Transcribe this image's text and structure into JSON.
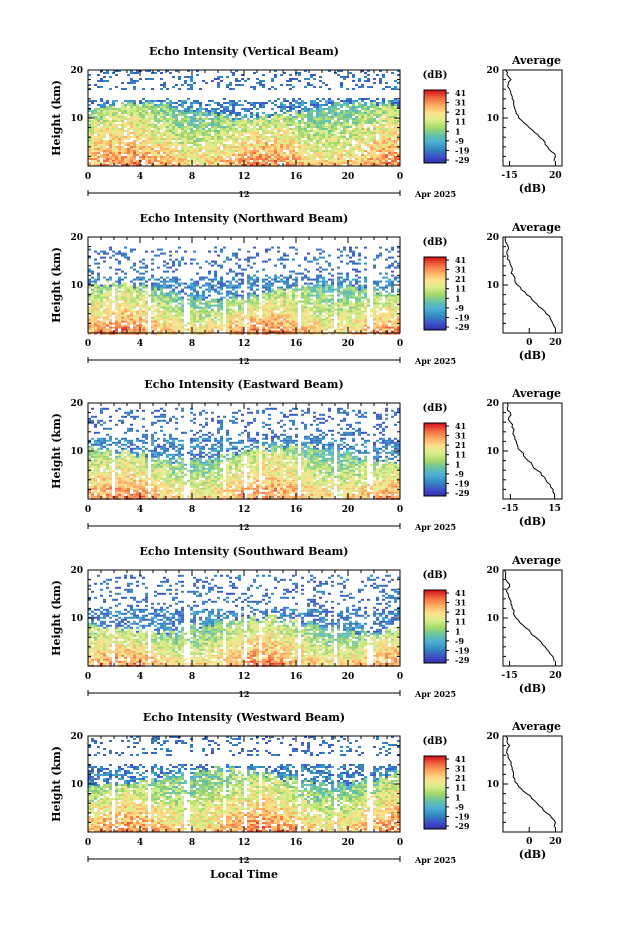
{
  "xaxis": {
    "ticks": [
      "0",
      "4",
      "8",
      "12",
      "16",
      "20",
      "0"
    ],
    "date_marker": "12",
    "date_label": "Apr 2025",
    "xlabel": "Local Time"
  },
  "colorbar": {
    "unit": "(dB)",
    "ticks": [
      "41",
      "31",
      "21",
      "11",
      "1",
      "-9",
      "-19",
      "-29"
    ],
    "colors": [
      "#d7191c",
      "#f46d43",
      "#fdae61",
      "#fee08b",
      "#d9ef8b",
      "#a6d96a",
      "#66c2a5",
      "#3288bd",
      "#3f4fcc",
      "#2c2c9e"
    ]
  },
  "panels": [
    {
      "title": "Echo Intensity (Vertical Beam)",
      "ylabel": "Height (km)",
      "yticks": [
        "20",
        "10"
      ],
      "ylim": [
        0,
        20
      ],
      "avg": {
        "title": "Average",
        "xlabel": "(dB)",
        "xticks": [
          "-15",
          "20"
        ],
        "xlim": [
          -20,
          25
        ],
        "profile": {
          "height": [
            1,
            2,
            3,
            4,
            5,
            6,
            7,
            8,
            9,
            10,
            11,
            12,
            13,
            14,
            15,
            16,
            17,
            18,
            19,
            20
          ],
          "db": [
            19,
            20,
            17,
            14,
            12,
            8,
            4,
            0,
            -4,
            -8,
            -10,
            -11,
            -12,
            -13,
            -14,
            -15,
            -16,
            -14,
            -17,
            -18
          ]
        }
      },
      "echo": {
        "top_km": 20,
        "dense_top_km": 11,
        "mid_top_km": 14,
        "gap": [
          14.5,
          16
        ]
      }
    },
    {
      "title": "Echo Intensity (Northward Beam)",
      "ylabel": "Height (km)",
      "yticks": [
        "20",
        "10"
      ],
      "ylim": [
        0,
        20
      ],
      "avg": {
        "title": "Average",
        "xlabel": "(dB)",
        "xticks": [
          "0",
          "20"
        ],
        "xlim": [
          -20,
          25
        ],
        "profile": {
          "height": [
            1,
            2,
            3,
            4,
            5,
            6,
            7,
            8,
            9,
            10,
            11,
            12,
            13,
            14,
            15,
            16,
            17,
            18,
            19,
            20
          ],
          "db": [
            20,
            18,
            16,
            13,
            10,
            6,
            2,
            -2,
            -6,
            -9,
            -11,
            -12,
            -13,
            -14,
            -15,
            -16,
            -17,
            -16,
            -18,
            -18
          ]
        }
      },
      "echo": {
        "top_km": 18,
        "dense_top_km": 8,
        "mid_top_km": 12,
        "gap": [
          0,
          0
        ]
      }
    },
    {
      "title": "Echo Intensity (Eastward Beam)",
      "ylabel": "Height (km)",
      "yticks": [
        "20",
        "10"
      ],
      "ylim": [
        0,
        20
      ],
      "avg": {
        "title": "Average",
        "xlabel": "(dB)",
        "xticks": [
          "-15",
          "15"
        ],
        "xlim": [
          -20,
          20
        ],
        "profile": {
          "height": [
            1,
            2,
            3,
            4,
            5,
            6,
            7,
            8,
            9,
            10,
            11,
            12,
            13,
            14,
            15,
            16,
            17,
            18,
            19,
            20
          ],
          "db": [
            15,
            14,
            12,
            9,
            6,
            3,
            0,
            -3,
            -6,
            -8,
            -10,
            -11,
            -12,
            -13,
            -14,
            -15,
            -16,
            -15,
            -17,
            -17
          ]
        }
      },
      "echo": {
        "top_km": 19,
        "dense_top_km": 9,
        "mid_top_km": 13,
        "gap": [
          0,
          0
        ]
      }
    },
    {
      "title": "Echo Intensity (Southward Beam)",
      "ylabel": "Height (km)",
      "yticks": [
        "20",
        "10"
      ],
      "ylim": [
        0,
        20
      ],
      "avg": {
        "title": "Average",
        "xlabel": "(dB)",
        "xticks": [
          "-15",
          "20"
        ],
        "xlim": [
          -20,
          25
        ],
        "profile": {
          "height": [
            1,
            2,
            3,
            4,
            5,
            6,
            7,
            8,
            9,
            10,
            11,
            12,
            13,
            14,
            15,
            16,
            17,
            18,
            19,
            20
          ],
          "db": [
            19,
            18,
            15,
            12,
            9,
            5,
            1,
            -3,
            -7,
            -10,
            -12,
            -13,
            -14,
            -15,
            -16,
            -17,
            -15,
            -18,
            -18,
            -19
          ]
        }
      },
      "echo": {
        "top_km": 19,
        "dense_top_km": 8,
        "mid_top_km": 12,
        "gap": [
          0,
          0
        ]
      }
    },
    {
      "title": "Echo Intensity (Westward Beam)",
      "ylabel": "Height (km)",
      "yticks": [
        "20",
        "10"
      ],
      "ylim": [
        0,
        20
      ],
      "avg": {
        "title": "Average",
        "xlabel": "(dB)",
        "xticks": [
          "0",
          "20"
        ],
        "xlim": [
          -20,
          25
        ],
        "profile": {
          "height": [
            1,
            2,
            3,
            4,
            5,
            6,
            7,
            8,
            9,
            10,
            11,
            12,
            13,
            14,
            15,
            16,
            17,
            18,
            19,
            20
          ],
          "db": [
            19,
            20,
            17,
            13,
            10,
            6,
            2,
            -2,
            -6,
            -9,
            -11,
            -12,
            -13,
            -14,
            -15,
            -16,
            -17,
            -15,
            -17,
            -18
          ]
        }
      },
      "echo": {
        "top_km": 20,
        "dense_top_km": 11,
        "mid_top_km": 14,
        "gap": [
          14.5,
          16
        ]
      }
    }
  ],
  "chart_data": [
    {
      "type": "heatmap",
      "title": "Echo Intensity (Vertical Beam)",
      "xlabel": "Local Time",
      "ylabel": "Height (km)",
      "ylim": [
        0,
        20
      ],
      "zlabel": "(dB)",
      "zlim": [
        -29,
        41
      ]
    },
    {
      "type": "line",
      "title": "Average",
      "xlabel": "(dB)",
      "ylabel": "Height (km)"
    },
    {
      "type": "heatmap",
      "title": "Echo Intensity (Northward Beam)",
      "xlabel": "Local Time",
      "ylabel": "Height (km)",
      "ylim": [
        0,
        20
      ],
      "zlabel": "(dB)",
      "zlim": [
        -29,
        41
      ]
    },
    {
      "type": "line",
      "title": "Average",
      "xlabel": "(dB)",
      "ylabel": "Height (km)"
    },
    {
      "type": "heatmap",
      "title": "Echo Intensity (Eastward Beam)",
      "xlabel": "Local Time",
      "ylabel": "Height (km)",
      "ylim": [
        0,
        20
      ],
      "zlabel": "(dB)",
      "zlim": [
        -29,
        41
      ]
    },
    {
      "type": "line",
      "title": "Average",
      "xlabel": "(dB)",
      "ylabel": "Height (km)"
    },
    {
      "type": "heatmap",
      "title": "Echo Intensity (Southward Beam)",
      "xlabel": "Local Time",
      "ylabel": "Height (km)",
      "ylim": [
        0,
        20
      ],
      "zlabel": "(dB)",
      "zlim": [
        -29,
        41
      ]
    },
    {
      "type": "line",
      "title": "Average",
      "xlabel": "(dB)",
      "ylabel": "Height (km)"
    },
    {
      "type": "heatmap",
      "title": "Echo Intensity (Westward Beam)",
      "xlabel": "Local Time",
      "ylabel": "Height (km)",
      "ylim": [
        0,
        20
      ],
      "zlabel": "(dB)",
      "zlim": [
        -29,
        41
      ]
    },
    {
      "type": "line",
      "title": "Average",
      "xlabel": "(dB)",
      "ylabel": "Height (km)"
    }
  ]
}
